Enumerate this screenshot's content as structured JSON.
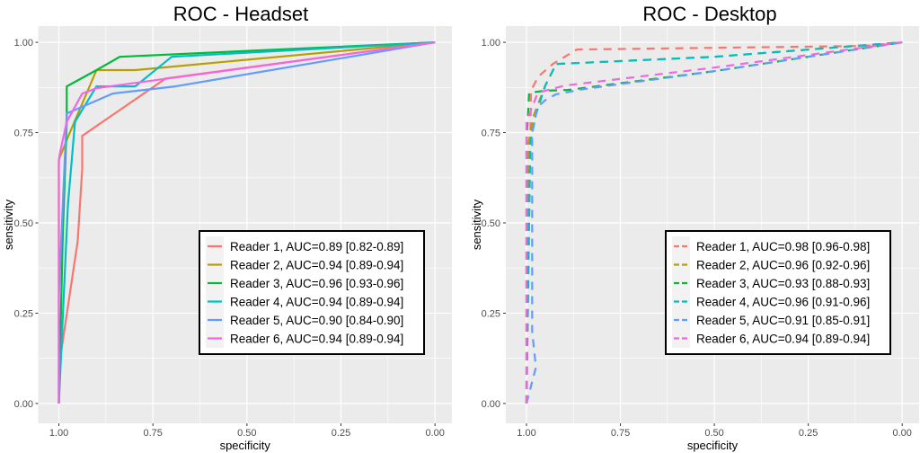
{
  "chart_data": [
    {
      "type": "line",
      "title": "ROC - Headset",
      "xlabel": "specificity",
      "ylabel": "sensitivity",
      "xlim": [
        1.0,
        0.0
      ],
      "ylim": [
        0.0,
        1.0
      ],
      "x_ticks": [
        "1.00",
        "0.75",
        "0.50",
        "0.25",
        "0.00"
      ],
      "y_ticks": [
        "0.00",
        "0.25",
        "0.50",
        "0.75",
        "1.00"
      ],
      "grid": true,
      "legend_position": "bottom-right",
      "line_style": "solid",
      "series": [
        {
          "name": "Reader 1, AUC=0.89 [0.82-0.89]",
          "color": "#F8766D",
          "points": [
            [
              1,
              0
            ],
            [
              1,
              0.1
            ],
            [
              0.95,
              0.45
            ],
            [
              0.938,
              0.65
            ],
            [
              0.938,
              0.741
            ],
            [
              0.716,
              0.9
            ],
            [
              0,
              1
            ]
          ]
        },
        {
          "name": "Reader 2, AUC=0.94 [0.89-0.94]",
          "color": "#B79F00",
          "points": [
            [
              1,
              0
            ],
            [
              1,
              0.675
            ],
            [
              0.979,
              0.73
            ],
            [
              0.9,
              0.923
            ],
            [
              0.797,
              0.923
            ],
            [
              0,
              1
            ]
          ]
        },
        {
          "name": "Reader 3, AUC=0.96 [0.93-0.96]",
          "color": "#00BA38",
          "points": [
            [
              1,
              0
            ],
            [
              0.99,
              0.45
            ],
            [
              0.979,
              0.78
            ],
            [
              0.979,
              0.878
            ],
            [
              0.9,
              0.923
            ],
            [
              0.838,
              0.96
            ],
            [
              0,
              1
            ]
          ]
        },
        {
          "name": "Reader 4, AUC=0.94 [0.89-0.94]",
          "color": "#00BFC4",
          "points": [
            [
              1,
              0
            ],
            [
              0.976,
              0.55
            ],
            [
              0.957,
              0.78
            ],
            [
              0.9,
              0.878
            ],
            [
              0.797,
              0.878
            ],
            [
              0.7,
              0.96
            ],
            [
              0,
              1
            ]
          ]
        },
        {
          "name": "Reader 5, AUC=0.90 [0.84-0.90]",
          "color": "#619CFF",
          "points": [
            [
              1,
              0
            ],
            [
              1,
              0.3
            ],
            [
              0.979,
              0.803
            ],
            [
              0.857,
              0.858
            ],
            [
              0.69,
              0.878
            ],
            [
              0,
              1
            ]
          ]
        },
        {
          "name": "Reader 6, AUC=0.94 [0.89-0.94]",
          "color": "#F564E3",
          "points": [
            [
              1,
              0
            ],
            [
              1,
              0.67
            ],
            [
              0.998,
              0.69
            ],
            [
              0.979,
              0.78
            ],
            [
              0.938,
              0.858
            ],
            [
              0.9,
              0.873
            ],
            [
              0,
              1
            ]
          ]
        }
      ]
    },
    {
      "type": "line",
      "title": "ROC - Desktop",
      "xlabel": "specificity",
      "ylabel": "sensitivity",
      "xlim": [
        1.0,
        0.0
      ],
      "ylim": [
        0.0,
        1.0
      ],
      "x_ticks": [
        "1.00",
        "0.75",
        "0.50",
        "0.25",
        "0.00"
      ],
      "y_ticks": [
        "0.00",
        "0.25",
        "0.50",
        "0.75",
        "1.00"
      ],
      "grid": true,
      "legend_position": "bottom-right",
      "line_style": "dashed",
      "series": [
        {
          "name": "Reader 1, AUC=0.98 [0.96-0.98]",
          "color": "#F8766D",
          "points": [
            [
              1,
              0
            ],
            [
              0.99,
              0.72
            ],
            [
              0.988,
              0.866
            ],
            [
              0.969,
              0.905
            ],
            [
              0.93,
              0.94
            ],
            [
              0.866,
              0.98
            ],
            [
              0.1,
              0.99
            ],
            [
              0,
              1
            ]
          ]
        },
        {
          "name": "Reader 2, AUC=0.96 [0.92-0.96]",
          "color": "#B79F00",
          "points": [
            [
              1,
              0
            ],
            [
              0.995,
              0.72
            ],
            [
              0.98,
              0.8
            ],
            [
              0.95,
              0.88
            ],
            [
              0.921,
              0.94
            ],
            [
              0.5,
              0.96
            ],
            [
              0,
              1
            ]
          ]
        },
        {
          "name": "Reader 3, AUC=0.93 [0.88-0.93]",
          "color": "#00BA38",
          "points": [
            [
              1,
              0
            ],
            [
              1,
              0.72
            ],
            [
              0.993,
              0.86
            ],
            [
              0.95,
              0.866
            ],
            [
              0.89,
              0.868
            ],
            [
              0.5,
              0.92
            ],
            [
              0,
              1
            ]
          ]
        },
        {
          "name": "Reader 4, AUC=0.96 [0.91-0.96]",
          "color": "#00BFC4",
          "points": [
            [
              1,
              0
            ],
            [
              0.99,
              0.72
            ],
            [
              0.975,
              0.8
            ],
            [
              0.95,
              0.88
            ],
            [
              0.921,
              0.94
            ],
            [
              0.5,
              0.96
            ],
            [
              0,
              1
            ]
          ]
        },
        {
          "name": "Reader 5, AUC=0.91 [0.85-0.91]",
          "color": "#619CFF",
          "points": [
            [
              1,
              0
            ],
            [
              0.975,
              0.1
            ],
            [
              0.985,
              0.2
            ],
            [
              0.985,
              0.75
            ],
            [
              0.971,
              0.82
            ],
            [
              0.95,
              0.84
            ],
            [
              0.921,
              0.856
            ],
            [
              0.85,
              0.87
            ],
            [
              0.5,
              0.92
            ],
            [
              0,
              1
            ]
          ]
        },
        {
          "name": "Reader 6, AUC=0.94 [0.89-0.94]",
          "color": "#F564E3",
          "points": [
            [
              1,
              0
            ],
            [
              1,
              0.78
            ],
            [
              0.97,
              0.86
            ],
            [
              0.9,
              0.88
            ],
            [
              0.5,
              0.93
            ],
            [
              0,
              1
            ]
          ]
        }
      ]
    }
  ]
}
